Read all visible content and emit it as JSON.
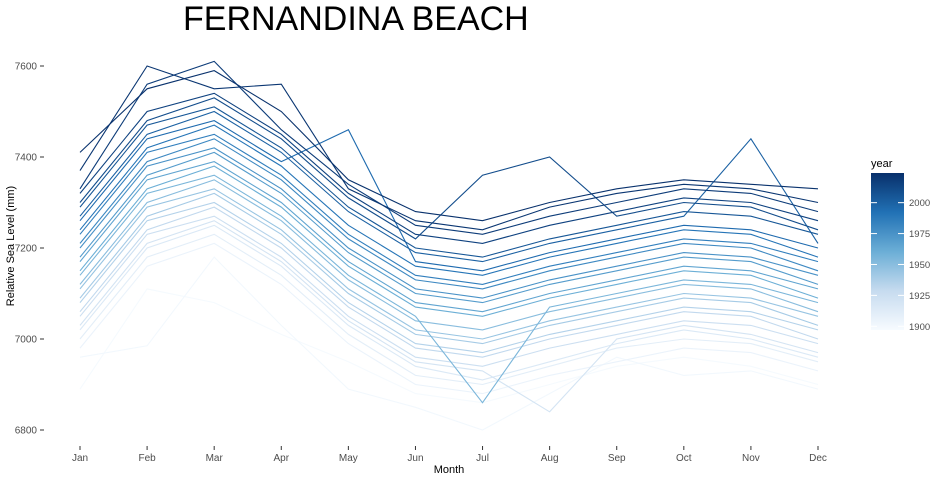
{
  "chart_data": {
    "type": "line",
    "title": "FERNANDINA BEACH",
    "xlabel": "Month",
    "ylabel": "Relative Sea Level (mm)",
    "categories": [
      "Jan",
      "Feb",
      "Mar",
      "Apr",
      "May",
      "Jun",
      "Jul",
      "Aug",
      "Sep",
      "Oct",
      "Nov",
      "Dec"
    ],
    "yticks": [
      6800,
      7000,
      7200,
      7400,
      7600
    ],
    "ylim": [
      6780,
      7640
    ],
    "grid": false,
    "legend": {
      "title": "year",
      "placement": "right",
      "type": "colorbar",
      "range": [
        1897,
        2024
      ],
      "ticks": [
        1900,
        1925,
        1950,
        1975,
        2000
      ],
      "color_low": "#f7fbff",
      "color_high": "#08306b"
    },
    "series": [
      {
        "year": 1898,
        "values": [
          6890,
          7110,
          7080,
          7010,
          6950,
          6880,
          6860,
          6900,
          6940,
          6960,
          6940,
          6900
        ]
      },
      {
        "year": 1900,
        "values": [
          6960,
          6985,
          7180,
          7030,
          6890,
          6850,
          6800,
          6880,
          6960,
          6920,
          6930,
          6890
        ]
      },
      {
        "year": 1905,
        "values": [
          6980,
          7160,
          7210,
          7120,
          6990,
          6900,
          6880,
          6920,
          6950,
          6980,
          6970,
          6930
        ]
      },
      {
        "year": 1910,
        "values": [
          7000,
          7180,
          7230,
          7140,
          7010,
          6920,
          6900,
          6940,
          6980,
          7000,
          6990,
          6950
        ]
      },
      {
        "year": 1915,
        "values": [
          7020,
          7200,
          7250,
          7160,
          7030,
          6940,
          6910,
          6950,
          6990,
          7020,
          7000,
          6960
        ]
      },
      {
        "year": 1920,
        "values": [
          7030,
          7210,
          7260,
          7170,
          7040,
          6950,
          6930,
          6840,
          7000,
          7030,
          7010,
          6970
        ]
      },
      {
        "year": 1925,
        "values": [
          7050,
          7230,
          7270,
          7180,
          7050,
          6960,
          6940,
          6980,
          7010,
          7040,
          7030,
          6990
        ]
      },
      {
        "year": 1930,
        "values": [
          7060,
          7240,
          7290,
          7200,
          7070,
          6980,
          6960,
          7000,
          7030,
          7060,
          7050,
          7000
        ]
      },
      {
        "year": 1935,
        "values": [
          7080,
          7260,
          7300,
          7210,
          7080,
          6990,
          6970,
          7010,
          7040,
          7070,
          7060,
          7020
        ]
      },
      {
        "year": 1940,
        "values": [
          7090,
          7270,
          7320,
          7230,
          7100,
          7010,
          6990,
          7030,
          7060,
          7090,
          7080,
          7030
        ]
      },
      {
        "year": 1945,
        "values": [
          7110,
          7290,
          7330,
          7240,
          7110,
          7020,
          7000,
          7040,
          7070,
          7100,
          7090,
          7050
        ]
      },
      {
        "year": 1950,
        "values": [
          7120,
          7300,
          7350,
          7260,
          7130,
          7040,
          7020,
          7060,
          7090,
          7120,
          7110,
          7060
        ]
      },
      {
        "year": 1955,
        "values": [
          7140,
          7320,
          7360,
          7270,
          7140,
          7050,
          6860,
          7070,
          7100,
          7130,
          7120,
          7080
        ]
      },
      {
        "year": 1960,
        "values": [
          7150,
          7330,
          7380,
          7290,
          7160,
          7070,
          7050,
          7090,
          7120,
          7150,
          7140,
          7090
        ]
      },
      {
        "year": 1965,
        "values": [
          7170,
          7350,
          7390,
          7300,
          7170,
          7080,
          7060,
          7100,
          7130,
          7160,
          7150,
          7110
        ]
      },
      {
        "year": 1970,
        "values": [
          7180,
          7360,
          7410,
          7320,
          7190,
          7100,
          7080,
          7120,
          7150,
          7180,
          7170,
          7120
        ]
      },
      {
        "year": 1975,
        "values": [
          7200,
          7380,
          7420,
          7330,
          7200,
          7110,
          7090,
          7130,
          7160,
          7190,
          7180,
          7140
        ]
      },
      {
        "year": 1980,
        "values": [
          7210,
          7390,
          7440,
          7350,
          7220,
          7130,
          7110,
          7150,
          7180,
          7210,
          7200,
          7150
        ]
      },
      {
        "year": 1985,
        "values": [
          7230,
          7410,
          7450,
          7360,
          7230,
          7140,
          7120,
          7160,
          7190,
          7220,
          7210,
          7170
        ]
      },
      {
        "year": 1990,
        "values": [
          7240,
          7420,
          7470,
          7380,
          7250,
          7160,
          7140,
          7180,
          7210,
          7240,
          7230,
          7180
        ]
      },
      {
        "year": 1995,
        "values": [
          7260,
          7440,
          7480,
          7390,
          7460,
          7170,
          7150,
          7190,
          7220,
          7250,
          7240,
          7200
        ]
      },
      {
        "year": 2000,
        "values": [
          7270,
          7450,
          7500,
          7410,
          7280,
          7190,
          7170,
          7210,
          7240,
          7270,
          7440,
          7210
        ]
      },
      {
        "year": 2005,
        "values": [
          7290,
          7470,
          7510,
          7420,
          7290,
          7200,
          7180,
          7220,
          7250,
          7280,
          7270,
          7230
        ]
      },
      {
        "year": 2010,
        "values": [
          7300,
          7480,
          7530,
          7440,
          7310,
          7220,
          7360,
          7400,
          7270,
          7300,
          7290,
          7240
        ]
      },
      {
        "year": 2015,
        "values": [
          7320,
          7500,
          7540,
          7450,
          7320,
          7230,
          7210,
          7250,
          7280,
          7310,
          7300,
          7260
        ]
      },
      {
        "year": 2018,
        "values": [
          7330,
          7560,
          7610,
          7460,
          7340,
          7250,
          7230,
          7270,
          7300,
          7330,
          7320,
          7280
        ]
      },
      {
        "year": 2021,
        "values": [
          7370,
          7600,
          7550,
          7560,
          7330,
          7260,
          7240,
          7290,
          7320,
          7340,
          7330,
          7300
        ]
      },
      {
        "year": 2023,
        "values": [
          7410,
          7550,
          7590,
          7500,
          7350,
          7280,
          7260,
          7300,
          7330,
          7350,
          7340,
          7330
        ]
      }
    ]
  }
}
